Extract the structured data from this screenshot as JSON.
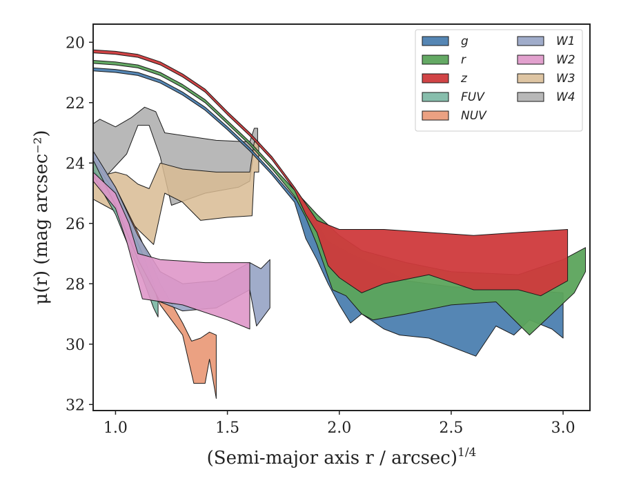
{
  "chart_data": {
    "type": "area",
    "title": "",
    "xlabel": "(Semi-major axis r / arcsec)",
    "xlabel_exponent": "1/4",
    "ylabel": "μ(r) (mag arcsec⁻²)",
    "xlim": [
      0.9,
      3.12
    ],
    "ylim": [
      32.2,
      19.4
    ],
    "y_inverted": true,
    "x_ticks": [
      "1.0",
      "1.5",
      "2.0",
      "2.5",
      "3.0"
    ],
    "y_ticks": [
      "20",
      "22",
      "24",
      "26",
      "28",
      "30",
      "32"
    ],
    "grid": false,
    "legend_location": "upper right",
    "series": [
      {
        "name": "W4",
        "label": "W4",
        "color": "#b0b0b0",
        "opacity": 0.9,
        "upper": [
          [
            0.9,
            22.7
          ],
          [
            0.93,
            22.55
          ],
          [
            1.0,
            22.8
          ],
          [
            1.07,
            22.5
          ],
          [
            1.13,
            22.15
          ],
          [
            1.18,
            22.3
          ],
          [
            1.22,
            23.0
          ],
          [
            1.45,
            23.25
          ],
          [
            1.6,
            23.3
          ],
          [
            1.62,
            22.85
          ],
          [
            1.635,
            22.85
          ]
        ],
        "lower": [
          [
            0.9,
            24.6
          ],
          [
            0.95,
            24.5
          ],
          [
            1.0,
            24.1
          ],
          [
            1.05,
            23.7
          ],
          [
            1.1,
            22.75
          ],
          [
            1.15,
            22.75
          ],
          [
            1.2,
            23.8
          ],
          [
            1.25,
            25.4
          ],
          [
            1.4,
            25.0
          ],
          [
            1.55,
            24.8
          ],
          [
            1.6,
            24.6
          ],
          [
            1.62,
            23.5
          ],
          [
            1.635,
            23.5
          ]
        ]
      },
      {
        "name": "W3",
        "label": "W3",
        "color": "#d8bb93",
        "opacity": 0.85,
        "upper": [
          [
            0.9,
            24.5
          ],
          [
            1.0,
            24.3
          ],
          [
            1.05,
            24.4
          ],
          [
            1.1,
            24.7
          ],
          [
            1.15,
            24.85
          ],
          [
            1.2,
            24.0
          ],
          [
            1.3,
            24.2
          ],
          [
            1.45,
            24.3
          ],
          [
            1.6,
            24.3
          ],
          [
            1.62,
            23.3
          ],
          [
            1.64,
            23.3
          ]
        ],
        "lower": [
          [
            0.9,
            25.2
          ],
          [
            0.95,
            25.4
          ],
          [
            1.0,
            25.6
          ],
          [
            1.05,
            25.8
          ],
          [
            1.1,
            26.2
          ],
          [
            1.17,
            26.7
          ],
          [
            1.22,
            25.0
          ],
          [
            1.3,
            25.3
          ],
          [
            1.38,
            25.9
          ],
          [
            1.5,
            25.8
          ],
          [
            1.61,
            25.75
          ],
          [
            1.62,
            24.3
          ],
          [
            1.64,
            24.3
          ]
        ]
      },
      {
        "name": "NUV",
        "label": "NUV",
        "color": "#e8906c",
        "opacity": 0.85,
        "upper": [
          [
            0.9,
            23.8
          ],
          [
            1.0,
            24.8
          ],
          [
            1.1,
            26.3
          ],
          [
            1.2,
            28.0
          ],
          [
            1.3,
            29.3
          ],
          [
            1.34,
            29.9
          ],
          [
            1.38,
            29.8
          ],
          [
            1.42,
            29.6
          ],
          [
            1.45,
            29.7
          ]
        ],
        "lower": [
          [
            0.9,
            24.2
          ],
          [
            1.0,
            25.3
          ],
          [
            1.1,
            27.0
          ],
          [
            1.2,
            28.7
          ],
          [
            1.3,
            29.7
          ],
          [
            1.35,
            31.3
          ],
          [
            1.4,
            31.3
          ],
          [
            1.42,
            30.5
          ],
          [
            1.45,
            31.8
          ]
        ]
      },
      {
        "name": "FUV",
        "label": "FUV",
        "color": "#72b39e",
        "opacity": 0.85,
        "upper": [
          [
            0.9,
            23.9
          ],
          [
            1.0,
            25.0
          ],
          [
            1.06,
            26.0
          ],
          [
            1.12,
            27.0
          ],
          [
            1.17,
            28.0
          ],
          [
            1.19,
            28.6
          ]
        ],
        "lower": [
          [
            0.9,
            24.4
          ],
          [
            1.0,
            25.7
          ],
          [
            1.06,
            26.8
          ],
          [
            1.12,
            27.8
          ],
          [
            1.17,
            28.8
          ],
          [
            1.19,
            29.1
          ]
        ]
      },
      {
        "name": "W1",
        "label": "W1",
        "color": "#96a3c4",
        "opacity": 0.9,
        "upper": [
          [
            0.9,
            23.6
          ],
          [
            1.0,
            24.8
          ],
          [
            1.1,
            26.4
          ],
          [
            1.2,
            27.6
          ],
          [
            1.3,
            28.0
          ],
          [
            1.45,
            27.9
          ],
          [
            1.6,
            27.3
          ],
          [
            1.65,
            27.5
          ],
          [
            1.69,
            27.2
          ]
        ],
        "lower": [
          [
            0.9,
            23.9
          ],
          [
            1.0,
            25.4
          ],
          [
            1.1,
            27.2
          ],
          [
            1.2,
            28.6
          ],
          [
            1.3,
            28.9
          ],
          [
            1.45,
            28.8
          ],
          [
            1.6,
            28.2
          ],
          [
            1.63,
            29.4
          ],
          [
            1.69,
            28.8
          ]
        ]
      },
      {
        "name": "W2",
        "label": "W2",
        "color": "#df97c9",
        "opacity": 0.9,
        "upper": [
          [
            0.9,
            24.3
          ],
          [
            1.0,
            25.0
          ],
          [
            1.06,
            26.0
          ],
          [
            1.1,
            27.0
          ],
          [
            1.2,
            27.2
          ],
          [
            1.4,
            27.3
          ],
          [
            1.6,
            27.3
          ]
        ],
        "lower": [
          [
            0.9,
            24.6
          ],
          [
            1.0,
            25.5
          ],
          [
            1.05,
            26.6
          ],
          [
            1.12,
            28.5
          ],
          [
            1.3,
            28.7
          ],
          [
            1.5,
            29.2
          ],
          [
            1.6,
            29.5
          ]
        ]
      },
      {
        "name": "g",
        "label": "g",
        "color": "#4c7fb0",
        "opacity": 0.95,
        "upper": [
          [
            0.9,
            20.85
          ],
          [
            1.0,
            20.9
          ],
          [
            1.1,
            21.0
          ],
          [
            1.2,
            21.25
          ],
          [
            1.3,
            21.65
          ],
          [
            1.4,
            22.15
          ],
          [
            1.5,
            22.8
          ],
          [
            1.6,
            23.5
          ],
          [
            1.7,
            24.3
          ],
          [
            1.8,
            25.15
          ],
          [
            1.9,
            26.0
          ],
          [
            1.95,
            26.6
          ],
          [
            2.05,
            27.0
          ],
          [
            2.2,
            27.5
          ],
          [
            2.3,
            27.9
          ],
          [
            2.5,
            28.1
          ],
          [
            2.8,
            28.2
          ],
          [
            3.0,
            28.3
          ]
        ],
        "lower": [
          [
            0.9,
            20.95
          ],
          [
            1.0,
            21.0
          ],
          [
            1.1,
            21.1
          ],
          [
            1.2,
            21.35
          ],
          [
            1.3,
            21.75
          ],
          [
            1.4,
            22.25
          ],
          [
            1.5,
            22.9
          ],
          [
            1.6,
            23.6
          ],
          [
            1.7,
            24.4
          ],
          [
            1.8,
            25.3
          ],
          [
            1.85,
            26.5
          ],
          [
            1.9,
            27.2
          ],
          [
            1.95,
            28.0
          ],
          [
            2.0,
            28.7
          ],
          [
            2.05,
            29.3
          ],
          [
            2.1,
            29.0
          ],
          [
            2.2,
            29.5
          ],
          [
            2.27,
            29.7
          ],
          [
            2.4,
            29.8
          ],
          [
            2.61,
            30.4
          ],
          [
            2.7,
            29.4
          ],
          [
            2.78,
            29.7
          ],
          [
            2.85,
            29.2
          ],
          [
            2.95,
            29.5
          ],
          [
            3.0,
            29.8
          ]
        ]
      },
      {
        "name": "r",
        "label": "r",
        "color": "#5ca45c",
        "opacity": 0.95,
        "upper": [
          [
            0.9,
            20.6
          ],
          [
            1.0,
            20.65
          ],
          [
            1.1,
            20.75
          ],
          [
            1.2,
            21.0
          ],
          [
            1.3,
            21.4
          ],
          [
            1.4,
            21.9
          ],
          [
            1.5,
            22.6
          ],
          [
            1.6,
            23.3
          ],
          [
            1.7,
            24.1
          ],
          [
            1.8,
            24.9
          ],
          [
            1.9,
            25.7
          ],
          [
            2.0,
            26.4
          ],
          [
            2.1,
            26.9
          ],
          [
            2.3,
            27.3
          ],
          [
            2.5,
            27.6
          ],
          [
            2.8,
            27.7
          ],
          [
            3.0,
            27.2
          ],
          [
            3.1,
            26.8
          ]
        ],
        "lower": [
          [
            0.9,
            20.7
          ],
          [
            1.0,
            20.75
          ],
          [
            1.1,
            20.85
          ],
          [
            1.2,
            21.1
          ],
          [
            1.3,
            21.5
          ],
          [
            1.4,
            22.0
          ],
          [
            1.5,
            22.7
          ],
          [
            1.6,
            23.4
          ],
          [
            1.7,
            24.2
          ],
          [
            1.8,
            25.1
          ],
          [
            1.85,
            25.8
          ],
          [
            1.9,
            26.7
          ],
          [
            1.97,
            28.2
          ],
          [
            2.03,
            28.4
          ],
          [
            2.1,
            29.0
          ],
          [
            2.15,
            29.2
          ],
          [
            2.3,
            29.0
          ],
          [
            2.5,
            28.7
          ],
          [
            2.7,
            28.6
          ],
          [
            2.85,
            29.7
          ],
          [
            2.95,
            29.0
          ],
          [
            3.05,
            28.3
          ],
          [
            3.1,
            27.6
          ]
        ]
      },
      {
        "name": "z",
        "label": "z",
        "color": "#cf3a3c",
        "opacity": 0.95,
        "upper": [
          [
            0.9,
            20.25
          ],
          [
            1.0,
            20.3
          ],
          [
            1.1,
            20.4
          ],
          [
            1.2,
            20.65
          ],
          [
            1.3,
            21.05
          ],
          [
            1.4,
            21.55
          ],
          [
            1.5,
            22.3
          ],
          [
            1.6,
            23.0
          ],
          [
            1.7,
            23.8
          ],
          [
            1.8,
            24.8
          ],
          [
            1.9,
            25.9
          ],
          [
            2.0,
            26.2
          ],
          [
            2.2,
            26.2
          ],
          [
            2.4,
            26.3
          ],
          [
            2.6,
            26.4
          ],
          [
            2.8,
            26.3
          ],
          [
            3.02,
            26.2
          ]
        ],
        "lower": [
          [
            0.9,
            20.35
          ],
          [
            1.0,
            20.4
          ],
          [
            1.1,
            20.5
          ],
          [
            1.2,
            20.75
          ],
          [
            1.3,
            21.15
          ],
          [
            1.4,
            21.65
          ],
          [
            1.5,
            22.4
          ],
          [
            1.6,
            23.1
          ],
          [
            1.7,
            23.9
          ],
          [
            1.8,
            24.9
          ],
          [
            1.85,
            25.7
          ],
          [
            1.9,
            26.3
          ],
          [
            1.95,
            27.4
          ],
          [
            2.0,
            27.8
          ],
          [
            2.1,
            28.3
          ],
          [
            2.2,
            28.0
          ],
          [
            2.4,
            27.7
          ],
          [
            2.6,
            28.2
          ],
          [
            2.8,
            28.2
          ],
          [
            2.9,
            28.4
          ],
          [
            3.02,
            27.9
          ]
        ]
      }
    ]
  }
}
